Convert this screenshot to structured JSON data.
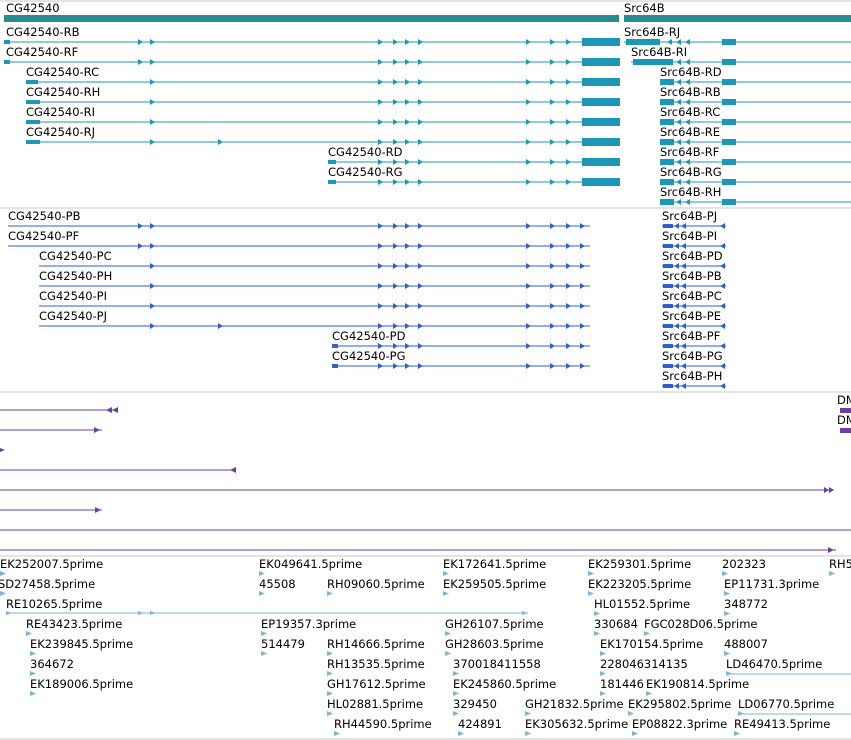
{
  "colors": {
    "gene": "#2a8c93",
    "transcript": "#1c98b6",
    "protein": "#2f61c9",
    "other": "#6b3fa0",
    "est": "#7db3dc",
    "divider": "#c8c8c8"
  },
  "gene_track": [
    {
      "label": "CG42540"
    },
    {
      "label": "Src64B"
    }
  ],
  "transcript_track": [
    {
      "label": "CG42540-RB"
    },
    {
      "label": "CG42540-RF"
    },
    {
      "label": "CG42540-RC"
    },
    {
      "label": "CG42540-RH"
    },
    {
      "label": "CG42540-RI"
    },
    {
      "label": "CG42540-RJ"
    },
    {
      "label": "CG42540-RD"
    },
    {
      "label": "CG42540-RG"
    },
    {
      "label": "Src64B-RJ"
    },
    {
      "label": "Src64B-RI"
    },
    {
      "label": "Src64B-RD"
    },
    {
      "label": "Src64B-RB"
    },
    {
      "label": "Src64B-RC"
    },
    {
      "label": "Src64B-RE"
    },
    {
      "label": "Src64B-RF"
    },
    {
      "label": "Src64B-RG"
    },
    {
      "label": "Src64B-RH"
    }
  ],
  "protein_track": [
    {
      "label": "CG42540-PB"
    },
    {
      "label": "CG42540-PF"
    },
    {
      "label": "CG42540-PC"
    },
    {
      "label": "CG42540-PH"
    },
    {
      "label": "CG42540-PI"
    },
    {
      "label": "CG42540-PJ"
    },
    {
      "label": "CG42540-PD"
    },
    {
      "label": "CG42540-PG"
    },
    {
      "label": "Src64B-PJ"
    },
    {
      "label": "Src64B-PI"
    },
    {
      "label": "Src64B-PD"
    },
    {
      "label": "Src64B-PB"
    },
    {
      "label": "Src64B-PC"
    },
    {
      "label": "Src64B-PE"
    },
    {
      "label": "Src64B-PF"
    },
    {
      "label": "Src64B-PG"
    },
    {
      "label": "Src64B-PH"
    }
  ],
  "feature_track": [
    {
      "label": "DM"
    },
    {
      "label": "DM"
    }
  ],
  "est_track": [
    {
      "label": "EK252007.5prime"
    },
    {
      "label": "SD27458.5prime"
    },
    {
      "label": "RE10265.5prime"
    },
    {
      "label": "RE43423.5prime"
    },
    {
      "label": "EK239845.5prime"
    },
    {
      "label": "364672"
    },
    {
      "label": "EK189006.5prime"
    },
    {
      "label": "EK049641.5prime"
    },
    {
      "label": "45508"
    },
    {
      "label": "RH09060.5prime"
    },
    {
      "label": "EP19357.3prime"
    },
    {
      "label": "514479"
    },
    {
      "label": "RH14666.5prime"
    },
    {
      "label": "RH13535.5prime"
    },
    {
      "label": "GH17612.5prime"
    },
    {
      "label": "HL02881.5prime"
    },
    {
      "label": "RH44590.5prime"
    },
    {
      "label": "EK172641.5prime"
    },
    {
      "label": "EK259505.5prime"
    },
    {
      "label": "GH26107.5prime"
    },
    {
      "label": "GH28603.5prime"
    },
    {
      "label": "370018411558"
    },
    {
      "label": "EK245860.5prime"
    },
    {
      "label": "329450"
    },
    {
      "label": "GH21832.5prime"
    },
    {
      "label": "424891"
    },
    {
      "label": "EK305632.5prime"
    },
    {
      "label": "EK259301.5prime"
    },
    {
      "label": "EK223205.5prime"
    },
    {
      "label": "HL01552.5prime"
    },
    {
      "label": "330684"
    },
    {
      "label": "FGC028D06.5prime"
    },
    {
      "label": "EK170154.5prime"
    },
    {
      "label": "228046314135"
    },
    {
      "label": "181446"
    },
    {
      "label": "EK190814.5prime"
    },
    {
      "label": "EK295802.5prime"
    },
    {
      "label": "EP08822.3prime"
    },
    {
      "label": "202323"
    },
    {
      "label": "EP11731.3prime"
    },
    {
      "label": "348772"
    },
    {
      "label": "488007"
    },
    {
      "label": "LD46470.5prime"
    },
    {
      "label": "LD06770.5prime"
    },
    {
      "label": "RE49413.5prime"
    },
    {
      "label": "RH5"
    }
  ]
}
